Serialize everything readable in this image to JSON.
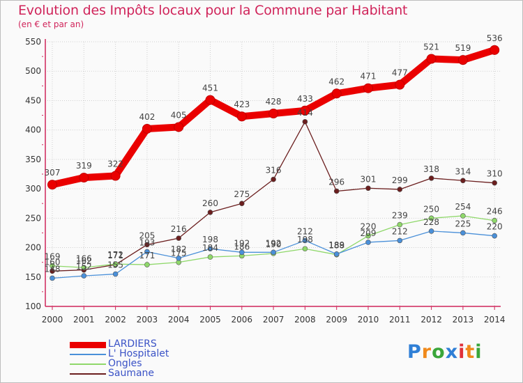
{
  "title": "Evolution des Impôts locaux pour la Commune par Habitant",
  "subtitle": "(en € et par an)",
  "logo": {
    "text": "Proxiti",
    "letters": [
      "P",
      "r",
      "o",
      "x",
      "i",
      "t",
      "i"
    ],
    "colors": [
      "#2f7fd6",
      "#f08a1c",
      "#3aa63a",
      "#2f7fd6",
      "#e0303a",
      "#f08a1c",
      "#3aa63a"
    ]
  },
  "chart_data": {
    "type": "line",
    "title": "Evolution des Impôts locaux pour la Commune par Habitant",
    "subtitle": "(en € et par an)",
    "xlabel": "",
    "ylabel": "",
    "ylim": [
      100,
      550
    ],
    "yticks": [
      100,
      150,
      200,
      250,
      300,
      350,
      400,
      450,
      500,
      550
    ],
    "grid": true,
    "legend_position": "bottom-left",
    "x": [
      "2000",
      "2001",
      "2002",
      "2003",
      "2004",
      "2005",
      "2006",
      "2007",
      "2008",
      "2009",
      "2010",
      "2011",
      "2012",
      "2013",
      "2014"
    ],
    "series": [
      {
        "name": "LARDIERS",
        "color": "#ea0000",
        "width": 10,
        "labels": true,
        "values": [
          307,
          319,
          322,
          402,
          405,
          451,
          423,
          428,
          433,
          462,
          471,
          477,
          521,
          519,
          536
        ]
      },
      {
        "name": "L' Hospitalet",
        "color": "#4a90d9",
        "width": 1.3,
        "labels": true,
        "values": [
          148,
          152,
          155,
          193,
          182,
          198,
          192,
          192,
          212,
          189,
          209,
          212,
          228,
          225,
          220
        ]
      },
      {
        "name": "Ongles",
        "color": "#8fd86a",
        "width": 1.3,
        "labels": true,
        "values": [
          169,
          166,
          172,
          171,
          175,
          184,
          186,
          190,
          198,
          188,
          220,
          239,
          250,
          254,
          246
        ]
      },
      {
        "name": "Saumane",
        "color": "#6b1e1e",
        "width": 1.3,
        "labels": true,
        "values": [
          160,
          162,
          171,
          205,
          216,
          260,
          275,
          316,
          414,
          296,
          301,
          299,
          318,
          314,
          310
        ]
      }
    ]
  }
}
